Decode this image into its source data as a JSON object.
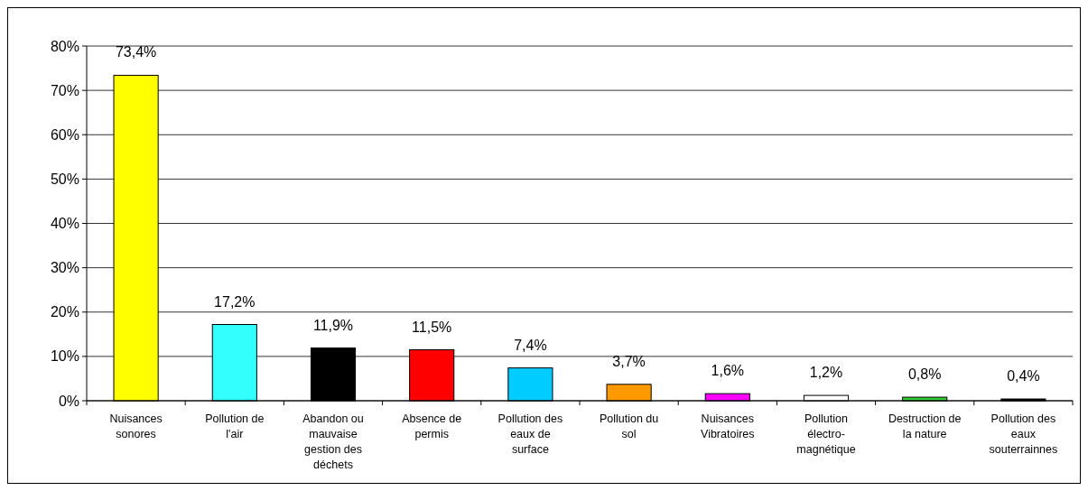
{
  "chart_data": {
    "type": "bar",
    "categories": [
      "Nuisances sonores",
      "Pollution de l'air",
      "Abandon ou mauvaise gestion des déchets",
      "Absence de permis",
      "Pollution des eaux de surface",
      "Pollution du sol",
      "Nuisances Vibratoires",
      "Pollution électro-magnétique",
      "Destruction de la nature",
      "Pollution des eaux souterrainnes"
    ],
    "values": [
      73.4,
      17.2,
      11.9,
      11.5,
      7.4,
      3.7,
      1.6,
      1.2,
      0.8,
      0.4
    ],
    "colors": [
      "#ffff00",
      "#33ffff",
      "#000000",
      "#ff0000",
      "#00ccff",
      "#ff9900",
      "#ff00ff",
      "#ffffff",
      "#33cc33",
      "#000000"
    ],
    "value_labels": [
      "73,4%",
      "17,2%",
      "11,9%",
      "11,5%",
      "7,4%",
      "3,7%",
      "1,6%",
      "1,2%",
      "0,8%",
      "0,4%"
    ],
    "ylim": [
      0,
      80
    ],
    "yticks": [
      {
        "value": 0,
        "label": "0%"
      },
      {
        "value": 10,
        "label": "10%"
      },
      {
        "value": 20,
        "label": "20%"
      },
      {
        "value": 30,
        "label": "30%"
      },
      {
        "value": 40,
        "label": "40%"
      },
      {
        "value": 50,
        "label": "50%"
      },
      {
        "value": 60,
        "label": "60%"
      },
      {
        "value": 70,
        "label": "70%"
      },
      {
        "value": 80,
        "label": "80%"
      }
    ],
    "grid": "y"
  }
}
